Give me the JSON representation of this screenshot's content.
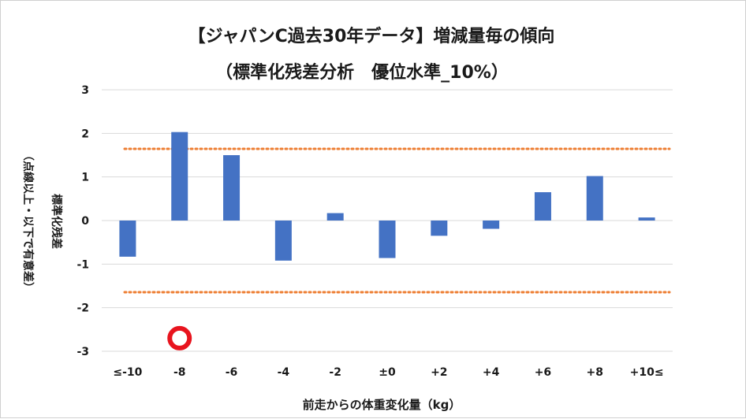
{
  "chart_data": {
    "type": "bar",
    "title": "【ジャパンC過去30年データ】増減量毎の傾向",
    "subtitle": "（標準化残差分析　優位水準_10%）",
    "xlabel": "前走からの体重変化量（kg）",
    "ylabel": "標準化残差",
    "ylabel_note": "（点線以上・以下で有意差）",
    "categories": [
      "≤-10",
      "-8",
      "-6",
      "-4",
      "-2",
      "±0",
      "+2",
      "+4",
      "+6",
      "+8",
      "+10≤"
    ],
    "values": [
      -0.83,
      2.03,
      1.5,
      -0.92,
      0.17,
      -0.86,
      -0.35,
      -0.19,
      0.65,
      1.02,
      0.07
    ],
    "ylim": [
      -3,
      3
    ],
    "yticks": [
      "3",
      "2",
      "1",
      "0",
      "-1",
      "-2",
      "-3"
    ],
    "ytick_values": [
      3,
      2,
      1,
      0,
      -1,
      -2,
      -3
    ],
    "threshold": 1.645,
    "grid": true,
    "bar_color": "#4472c4",
    "threshold_color": "#ed7d31",
    "marker": {
      "category": "-8",
      "value": -2.7,
      "color": "#e8141e"
    }
  }
}
